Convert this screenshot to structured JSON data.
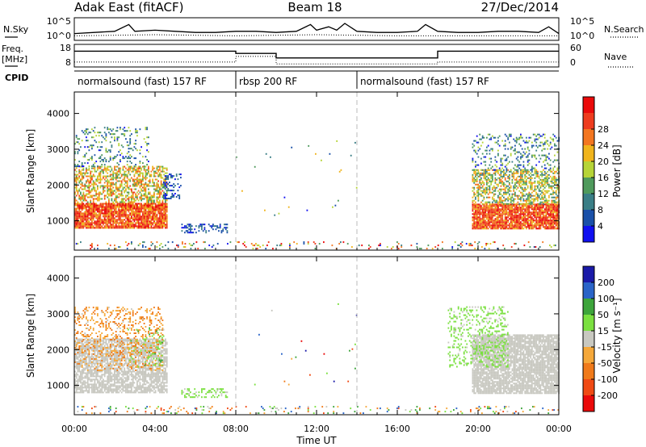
{
  "header": {
    "station": "Adak East (fitACF)",
    "beam": "Beam 18",
    "date": "27/Dec/2014"
  },
  "noise_panel": {
    "left_label": "N.Sky",
    "right_label": "N.Search",
    "left_ticks": [
      "10^5",
      "10^0"
    ],
    "right_ticks": [
      "10^5",
      "10^0"
    ]
  },
  "freq_panel": {
    "left_label_1": "Freq.",
    "left_label_2": "[MHz]",
    "right_label": "Nave",
    "left_ticks": [
      "18",
      "8"
    ],
    "right_ticks": [
      "60",
      "0"
    ]
  },
  "cpid_panel": {
    "label": "CPID",
    "modes": [
      {
        "name": "normalsound (fast) 157 RF",
        "start_hour": 0
      },
      {
        "name": "rbsp 200 RF",
        "start_hour": 8
      },
      {
        "name": "normalsound (fast) 157 RF",
        "start_hour": 14
      }
    ]
  },
  "x_axis": {
    "label": "Time UT",
    "ticks": [
      "00:00",
      "04:00",
      "08:00",
      "12:00",
      "16:00",
      "20:00",
      "00:00"
    ],
    "range_hours": [
      0,
      24
    ]
  },
  "power_panel": {
    "ylabel": "Slant Range [km]",
    "yticks": [
      "1000",
      "2000",
      "3000",
      "4000"
    ],
    "colorbar_label": "Power [dB]",
    "colorbar_ticks": [
      "4",
      "8",
      "12",
      "16",
      "20",
      "24",
      "28"
    ]
  },
  "velocity_panel": {
    "ylabel": "Slant Range [km]",
    "yticks": [
      "1000",
      "2000",
      "3000",
      "4000"
    ],
    "colorbar_label": "Velocity [m s⁻¹]",
    "colorbar_ticks": [
      "200",
      "100",
      "50",
      "15",
      "-15",
      "-50",
      "-100",
      "-200"
    ]
  },
  "chart_data": [
    {
      "type": "line",
      "name": "noise",
      "x_unit": "hours UT",
      "series": [
        {
          "name": "N.Sky",
          "style": "solid",
          "x": [
            0,
            1,
            2,
            2.7,
            3,
            4,
            5,
            6,
            7,
            8,
            9,
            10,
            11,
            11.7,
            12,
            12.6,
            13,
            13.4,
            14,
            15,
            16,
            17,
            17.4,
            18,
            19,
            20,
            21,
            22,
            23,
            23.5,
            24
          ],
          "y_level": [
            0.3,
            0.35,
            0.4,
            0.7,
            0.4,
            0.45,
            0.4,
            0.35,
            0.35,
            0.4,
            0.4,
            0.35,
            0.4,
            0.7,
            0.45,
            0.6,
            0.45,
            0.75,
            0.4,
            0.35,
            0.35,
            0.4,
            0.7,
            0.4,
            0.35,
            0.35,
            0.4,
            0.4,
            0.35,
            0.6,
            0.3
          ]
        },
        {
          "name": "N.Search",
          "style": "dotted",
          "x": [
            0,
            4,
            8,
            12,
            16,
            20,
            24
          ],
          "y_level": [
            0.2,
            0.25,
            0.2,
            0.25,
            0.2,
            0.2,
            0.2
          ]
        }
      ]
    },
    {
      "type": "line",
      "name": "freq_nave",
      "x_unit": "hours UT",
      "series": [
        {
          "name": "Freq.",
          "style": "solid",
          "x": [
            0,
            8,
            8,
            10,
            10,
            18,
            18,
            24
          ],
          "y": [
            15,
            15,
            14,
            14,
            12,
            12,
            15,
            15
          ],
          "ylim": [
            8,
            18
          ]
        },
        {
          "name": "Nave",
          "style": "dotted",
          "x": [
            0,
            8,
            8,
            10,
            10,
            18,
            18,
            24
          ],
          "y": [
            13,
            13,
            28,
            28,
            8,
            8,
            13,
            13
          ],
          "ylim": [
            0,
            60
          ]
        }
      ]
    },
    {
      "type": "heatmap",
      "name": "power",
      "x": "time UT (hours)",
      "y": "slant range (km)",
      "ylim": [
        180,
        4600
      ],
      "value_unit": "dB",
      "clim": [
        0,
        30
      ],
      "scatter_regions": [
        {
          "t": [
            0,
            4.6
          ],
          "r": [
            780,
            1500
          ],
          "value": [
            18,
            30
          ],
          "density": 0.9
        },
        {
          "t": [
            0,
            4.6
          ],
          "r": [
            1500,
            2500
          ],
          "value": [
            10,
            24
          ],
          "density": 0.55
        },
        {
          "t": [
            0,
            3.7
          ],
          "r": [
            2500,
            3600
          ],
          "value": [
            2,
            16
          ],
          "density": 0.18
        },
        {
          "t": [
            4.4,
            5.3
          ],
          "r": [
            1600,
            2300
          ],
          "value": [
            2,
            8
          ],
          "density": 0.3
        },
        {
          "t": [
            5.3,
            7.6
          ],
          "r": [
            650,
            900
          ],
          "value": [
            2,
            8
          ],
          "density": 0.35
        },
        {
          "t": [
            8,
            14
          ],
          "r": [
            1000,
            3300
          ],
          "value": [
            2,
            20
          ],
          "density": 0.004
        },
        {
          "t": [
            19.7,
            24
          ],
          "r": [
            760,
            1450
          ],
          "value": [
            18,
            30
          ],
          "density": 0.9
        },
        {
          "t": [
            19.7,
            24
          ],
          "r": [
            1450,
            2400
          ],
          "value": [
            8,
            22
          ],
          "density": 0.55
        },
        {
          "t": [
            19.7,
            24
          ],
          "r": [
            2400,
            3400
          ],
          "value": [
            2,
            16
          ],
          "density": 0.2
        },
        {
          "t": [
            0,
            24
          ],
          "r": [
            200,
            420
          ],
          "value": [
            2,
            30
          ],
          "density": 0.12
        }
      ]
    },
    {
      "type": "heatmap",
      "name": "velocity",
      "x": "time UT (hours)",
      "y": "slant range (km)",
      "ylim": [
        180,
        4600
      ],
      "value_unit": "m s^-1",
      "clim": [
        -200,
        200
      ],
      "scatter_regions": [
        {
          "t": [
            0,
            4.6
          ],
          "r": [
            780,
            2300
          ],
          "value": [
            -15,
            15
          ],
          "density": 0.75
        },
        {
          "t": [
            0,
            4.4
          ],
          "r": [
            1400,
            3200
          ],
          "value": [
            -100,
            -15
          ],
          "density": 0.25
        },
        {
          "t": [
            2.5,
            4.4
          ],
          "r": [
            1500,
            2600
          ],
          "value": [
            15,
            80
          ],
          "density": 0.12
        },
        {
          "t": [
            5.3,
            7.6
          ],
          "r": [
            650,
            900
          ],
          "value": [
            15,
            50
          ],
          "density": 0.3
        },
        {
          "t": [
            8,
            14
          ],
          "r": [
            1000,
            3300
          ],
          "value": [
            -200,
            200
          ],
          "density": 0.004
        },
        {
          "t": [
            19.7,
            24
          ],
          "r": [
            760,
            2400
          ],
          "value": [
            -15,
            15
          ],
          "density": 0.85
        },
        {
          "t": [
            18.5,
            21.5
          ],
          "r": [
            1500,
            3200
          ],
          "value": [
            15,
            60
          ],
          "density": 0.25
        },
        {
          "t": [
            0,
            24
          ],
          "r": [
            200,
            420
          ],
          "value": [
            -150,
            150
          ],
          "density": 0.12
        }
      ]
    }
  ],
  "colors": {
    "power_scale": [
      "#1010f0",
      "#1a50a8",
      "#3a7e86",
      "#4f9a5c",
      "#b6d437",
      "#f0b41c",
      "#f37620",
      "#ee3c1e",
      "#ea0a0a"
    ],
    "velocity_scale": [
      "#1a1aa8",
      "#2a64c8",
      "#3da53b",
      "#7be040",
      "#c8c8c0",
      "#f5a83a",
      "#f07a1a",
      "#f04a14",
      "#ea0a0a"
    ],
    "guide_line": "#bbbbbb"
  }
}
